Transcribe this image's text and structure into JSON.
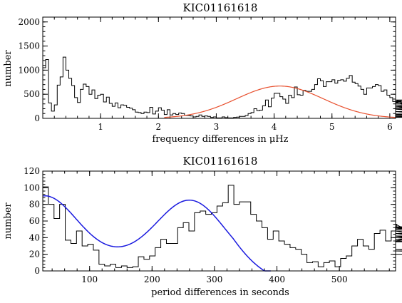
{
  "chart_data": [
    {
      "type": "line",
      "title": "KIC01161618",
      "xlabel": "frequency differences in μHz",
      "ylabel": "number",
      "xlim": [
        0,
        6.1
      ],
      "ylim": [
        0,
        2100
      ],
      "xticks": [
        1,
        2,
        3,
        4,
        5,
        6
      ],
      "yticks": [
        0,
        500,
        1000,
        1500,
        2000
      ],
      "grid": false,
      "series": [
        {
          "kind": "histogram",
          "color": "#000000",
          "bin_width": 0.05,
          "x_start": 0.0,
          "values": [
            1050,
            1220,
            320,
            150,
            280,
            690,
            860,
            1270,
            1000,
            830,
            680,
            430,
            330,
            600,
            710,
            660,
            500,
            590,
            410,
            480,
            500,
            340,
            440,
            310,
            250,
            320,
            220,
            280,
            270,
            230,
            210,
            180,
            130,
            120,
            100,
            130,
            120,
            230,
            90,
            150,
            220,
            170,
            80,
            180,
            70,
            100,
            80,
            110,
            100,
            60,
            60,
            50,
            30,
            40,
            70,
            40,
            50,
            40,
            20,
            30,
            10,
            10,
            30,
            15,
            10,
            10,
            20,
            25,
            40,
            40,
            60,
            100,
            120,
            200,
            160,
            170,
            260,
            380,
            240,
            420,
            520,
            520,
            450,
            400,
            310,
            480,
            430,
            650,
            490,
            480,
            580,
            560,
            560,
            600,
            700,
            820,
            780,
            660,
            760,
            760,
            800,
            730,
            790,
            800,
            770,
            830,
            890,
            750,
            720,
            670,
            600,
            500,
            630,
            630,
            660,
            700,
            680,
            560,
            590,
            480,
            430,
            350,
            300,
            380,
            350,
            380,
            310,
            340,
            220,
            210,
            280,
            250,
            190,
            140,
            80,
            90,
            60,
            60,
            40,
            50,
            30,
            20,
            20,
            20,
            20
          ]
        },
        {
          "kind": "gaussian-fit",
          "color": "#e8502e",
          "amplitude": 670,
          "center": 4.1,
          "sigma": 0.75,
          "x_range": [
            2.1,
            6.1
          ]
        }
      ]
    },
    {
      "type": "line",
      "title": "KIC01161618",
      "xlabel": "period differences in seconds",
      "ylabel": "number",
      "xlim": [
        25,
        590
      ],
      "ylim": [
        0,
        120
      ],
      "xticks": [
        100,
        200,
        300,
        400,
        500
      ],
      "yticks": [
        0,
        20,
        40,
        60,
        80,
        100,
        120
      ],
      "grid": false,
      "series": [
        {
          "kind": "histogram",
          "color": "#000000",
          "bin_width": 9,
          "x_start": 25,
          "values": [
            101,
            80,
            63,
            80,
            37,
            33,
            48,
            30,
            32,
            25,
            8,
            6,
            8,
            4,
            6,
            4,
            5,
            17,
            14,
            18,
            28,
            38,
            33,
            33,
            52,
            58,
            48,
            70,
            72,
            68,
            70,
            78,
            82,
            103,
            80,
            83,
            83,
            68,
            60,
            52,
            38,
            48,
            36,
            32,
            28,
            26,
            20,
            10,
            11,
            5,
            10,
            12,
            5,
            15,
            18,
            30,
            38,
            30,
            26,
            45,
            49,
            36,
            48,
            56,
            52,
            50,
            53,
            52,
            48,
            48,
            40,
            36,
            48,
            35,
            45,
            35,
            42,
            38,
            42,
            26,
            24,
            20
          ]
        },
        {
          "kind": "gaussian-fit",
          "color": "#1a1adf",
          "model": "offset-gaussian",
          "amplitude": 83,
          "center": 262,
          "sigma": 55,
          "baseline": 14,
          "baseline_center": 130,
          "baseline_sigma": 140,
          "x_range": [
            25,
            390
          ]
        }
      ]
    }
  ]
}
